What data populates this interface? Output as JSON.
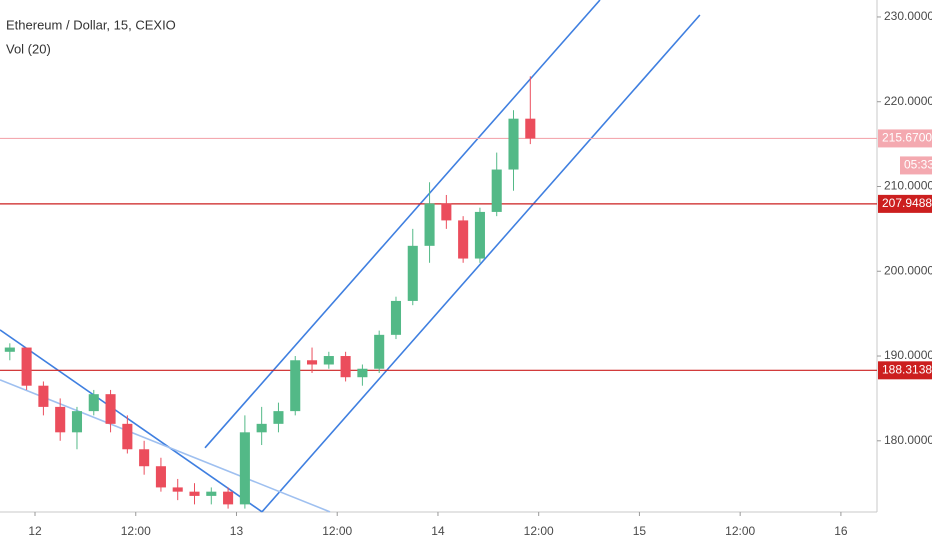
{
  "chart_data": {
    "type": "candlestick",
    "title": "Ethereum / Dollar, 15, CEXIO",
    "subtitle": "Vol (20)",
    "up_color": "#53b987",
    "down_color": "#eb4d5c",
    "xlim": [
      -4.17,
      100.3
    ],
    "ylim": [
      171.6,
      232.0
    ],
    "xticks": [
      {
        "value": 0,
        "label": "12"
      },
      {
        "value": 12,
        "label": "12:00"
      },
      {
        "value": 24,
        "label": "13"
      },
      {
        "value": 36,
        "label": "12:00"
      },
      {
        "value": 48,
        "label": "14"
      },
      {
        "value": 60,
        "label": "12:00"
      },
      {
        "value": 72,
        "label": "15"
      },
      {
        "value": 84,
        "label": "12:00"
      },
      {
        "value": 96,
        "label": "16"
      }
    ],
    "yticks": [
      {
        "value": 180,
        "label": "180.00000"
      },
      {
        "value": 190,
        "label": "190.00000"
      },
      {
        "value": 200,
        "label": "200.00000"
      },
      {
        "value": 210,
        "label": "210.00000"
      },
      {
        "value": 220,
        "label": "220.00000"
      },
      {
        "value": 230,
        "label": "230.00000"
      }
    ],
    "candles": {
      "x": [
        -3,
        -1,
        1,
        3,
        5,
        7,
        9,
        11,
        13,
        15,
        17,
        19,
        21,
        23,
        25,
        27,
        29,
        31,
        33,
        35,
        37,
        39,
        41,
        43,
        45,
        47,
        49,
        51,
        53,
        55,
        57,
        59
      ],
      "open": [
        190.5,
        191,
        186.5,
        184,
        181,
        183.5,
        185.5,
        182,
        179,
        177,
        174.5,
        174,
        173.5,
        174,
        172.5,
        181,
        182,
        183.5,
        189.5,
        189,
        190,
        187.5,
        188.5,
        192.5,
        196.5,
        203,
        208,
        206,
        201.5,
        207,
        212,
        218
      ],
      "high": [
        191.5,
        191,
        187,
        185,
        184,
        186,
        186,
        183,
        180,
        178,
        175.5,
        175,
        174.5,
        174.5,
        183,
        184,
        184.5,
        190,
        191,
        190.5,
        190.5,
        189,
        193,
        197,
        205,
        210.5,
        209,
        206.5,
        207.5,
        214,
        219,
        223
      ],
      "low": [
        189.5,
        186,
        183,
        180,
        179,
        183,
        181,
        178.5,
        176,
        174,
        173,
        172.5,
        172.5,
        172,
        172,
        179.5,
        181,
        183,
        188,
        188.5,
        187,
        186.5,
        188,
        192,
        196,
        201,
        205,
        201,
        201,
        206.5,
        209.5,
        215
      ],
      "close": [
        191,
        186.5,
        184,
        181,
        183.5,
        185.5,
        182,
        179,
        177,
        174.5,
        174,
        173.5,
        174,
        172.5,
        181,
        182,
        183.5,
        189.5,
        189,
        190,
        187.5,
        188.5,
        192.5,
        196.5,
        203,
        208,
        206,
        201.5,
        207,
        212,
        218,
        215.67
      ]
    },
    "price_lines": [
      {
        "value": 215.67,
        "label": "215.67000",
        "color": "#f4a9b0",
        "countdown": "05:33"
      },
      {
        "value": 207.94882,
        "label": "207.94882",
        "color": "#cc1f1f"
      },
      {
        "value": 188.31383,
        "label": "188.31383",
        "color": "#cc1f1f"
      }
    ],
    "trend_lines": [
      {
        "color": "#3f7fe0",
        "x": [
          20.25,
          67.3
        ],
        "y": [
          179.17,
          232.0
        ]
      },
      {
        "color": "#3f7fe0",
        "x": [
          27.04,
          79.2
        ],
        "y": [
          171.62,
          230.23
        ]
      },
      {
        "color": "#3f7fe0",
        "x": [
          -4.17,
          27.04
        ],
        "y": [
          193.08,
          171.62
        ]
      },
      {
        "color": "#9fc0f0",
        "x": [
          -4.17,
          35.14
        ],
        "y": [
          187.19,
          171.62
        ]
      }
    ]
  }
}
